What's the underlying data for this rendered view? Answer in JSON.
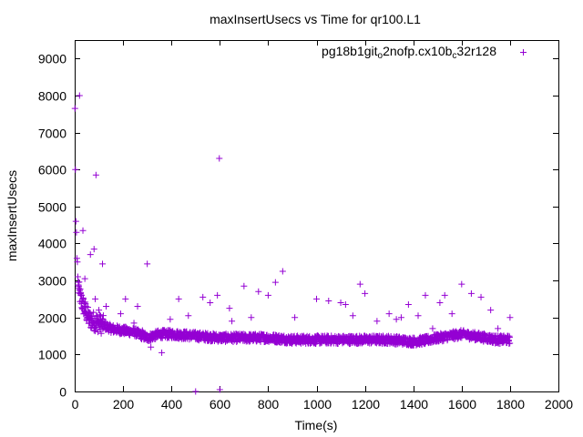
{
  "chart_data": {
    "type": "scatter",
    "title": "maxInsertUsecs vs Time for qr100.L1",
    "xlabel": "Time(s)",
    "ylabel": "maxInsertUsecs",
    "xlim": [
      0,
      2000
    ],
    "ylim": [
      0,
      9500
    ],
    "xticks": [
      0,
      200,
      400,
      600,
      800,
      1000,
      1200,
      1400,
      1600,
      1800,
      2000
    ],
    "yticks": [
      0,
      1000,
      2000,
      3000,
      4000,
      5000,
      6000,
      7000,
      8000,
      9000
    ],
    "grid": false,
    "legend_position": "top-right",
    "marker": "plus",
    "series": [
      {
        "name": "pg18b1git_o2nofp.cx10b_c32r128",
        "legend": {
          "segments": [
            {
              "text": "pg18b1git",
              "sub": false
            },
            {
              "text": "o",
              "sub": true
            },
            {
              "text": "2nofp.cx10b",
              "sub": false
            },
            {
              "text": "c",
              "sub": true
            },
            {
              "text": "32r128",
              "sub": false
            }
          ]
        },
        "color": "#9400d3",
        "points": [
          [
            1,
            7650
          ],
          [
            3,
            6000
          ],
          [
            5,
            4600
          ],
          [
            7,
            4300
          ],
          [
            9,
            3600
          ],
          [
            11,
            3500
          ],
          [
            13,
            3100
          ],
          [
            15,
            2950
          ],
          [
            17,
            2850
          ],
          [
            20,
            8000
          ],
          [
            23,
            2650
          ],
          [
            26,
            2600
          ],
          [
            30,
            2450
          ],
          [
            34,
            4350
          ],
          [
            38,
            2300
          ],
          [
            42,
            3050
          ],
          [
            46,
            2150
          ],
          [
            50,
            2050
          ],
          [
            55,
            2000
          ],
          [
            60,
            1950
          ],
          [
            65,
            3700
          ],
          [
            70,
            1900
          ],
          [
            80,
            3850
          ],
          [
            85,
            2500
          ],
          [
            88,
            5850
          ],
          [
            95,
            1850
          ],
          [
            100,
            2200
          ],
          [
            110,
            1800
          ],
          [
            115,
            3450
          ],
          [
            130,
            2300
          ],
          [
            150,
            1750
          ],
          [
            160,
            1600
          ],
          [
            190,
            2100
          ],
          [
            200,
            1700
          ],
          [
            210,
            2500
          ],
          [
            230,
            1650
          ],
          [
            245,
            1850
          ],
          [
            260,
            2300
          ],
          [
            280,
            1650
          ],
          [
            300,
            3450
          ],
          [
            315,
            1200
          ],
          [
            320,
            1550
          ],
          [
            350,
            1550
          ],
          [
            360,
            1050
          ],
          [
            395,
            1950
          ],
          [
            400,
            1600
          ],
          [
            430,
            2500
          ],
          [
            450,
            1550
          ],
          [
            470,
            2050
          ],
          [
            500,
            0
          ],
          [
            530,
            2550
          ],
          [
            550,
            1500
          ],
          [
            560,
            2400
          ],
          [
            590,
            2600
          ],
          [
            598,
            6300
          ],
          [
            600,
            50
          ],
          [
            610,
            1500
          ],
          [
            640,
            2250
          ],
          [
            650,
            1900
          ],
          [
            700,
            2850
          ],
          [
            730,
            2000
          ],
          [
            760,
            2700
          ],
          [
            800,
            2600
          ],
          [
            830,
            2950
          ],
          [
            860,
            3250
          ],
          [
            910,
            2000
          ],
          [
            1000,
            2500
          ],
          [
            1050,
            2450
          ],
          [
            1100,
            2400
          ],
          [
            1120,
            2350
          ],
          [
            1150,
            2050
          ],
          [
            1180,
            2900
          ],
          [
            1200,
            2650
          ],
          [
            1250,
            1900
          ],
          [
            1300,
            2100
          ],
          [
            1330,
            1950
          ],
          [
            1350,
            2000
          ],
          [
            1380,
            2350
          ],
          [
            1420,
            2050
          ],
          [
            1450,
            2600
          ],
          [
            1480,
            1700
          ],
          [
            1510,
            2400
          ],
          [
            1530,
            2600
          ],
          [
            1560,
            2100
          ],
          [
            1600,
            2900
          ],
          [
            1640,
            2650
          ],
          [
            1680,
            2550
          ],
          [
            1720,
            2200
          ],
          [
            1750,
            1700
          ],
          [
            1800,
            2000
          ]
        ],
        "trend": [
          [
            15,
            2800
          ],
          [
            25,
            2500
          ],
          [
            40,
            2250
          ],
          [
            60,
            1950
          ],
          [
            100,
            1850
          ],
          [
            150,
            1700
          ],
          [
            200,
            1650
          ],
          [
            250,
            1600
          ],
          [
            300,
            1450
          ],
          [
            350,
            1550
          ],
          [
            400,
            1550
          ],
          [
            500,
            1500
          ],
          [
            600,
            1450
          ],
          [
            700,
            1450
          ],
          [
            800,
            1450
          ],
          [
            900,
            1400
          ],
          [
            1000,
            1400
          ],
          [
            1100,
            1400
          ],
          [
            1200,
            1400
          ],
          [
            1300,
            1400
          ],
          [
            1400,
            1350
          ],
          [
            1450,
            1380
          ],
          [
            1500,
            1450
          ],
          [
            1550,
            1500
          ],
          [
            1600,
            1550
          ],
          [
            1650,
            1500
          ],
          [
            1700,
            1450
          ],
          [
            1750,
            1400
          ],
          [
            1800,
            1400
          ]
        ]
      }
    ]
  }
}
